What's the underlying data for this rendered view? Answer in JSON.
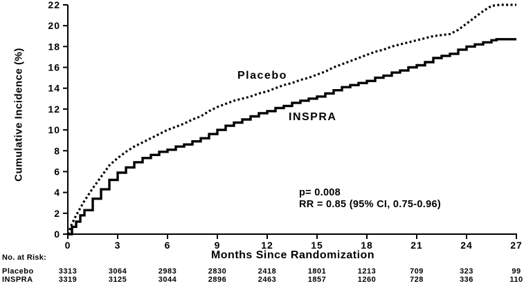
{
  "chart_data": {
    "type": "line",
    "xlabel": "Months Since Randomization",
    "ylabel": "Cumulative Incidence (%)",
    "xlim": [
      0,
      27
    ],
    "ylim": [
      0,
      22
    ],
    "x_ticks": [
      0,
      3,
      6,
      9,
      12,
      15,
      18,
      21,
      24,
      27
    ],
    "y_ticks": [
      0,
      2,
      4,
      6,
      8,
      10,
      12,
      14,
      16,
      18,
      20,
      22
    ],
    "grid": false,
    "legend_position": "labels-on-curves",
    "annotations": [
      "p= 0.008",
      "RR = 0.85 (95% CI, 0.75-0.96)"
    ],
    "series": [
      {
        "name": "Placebo",
        "line_style": "dotted",
        "color": "#000000",
        "points": [
          [
            0,
            0
          ],
          [
            0.25,
            1.0
          ],
          [
            0.5,
            1.8
          ],
          [
            0.75,
            2.5
          ],
          [
            1,
            3.2
          ],
          [
            1.5,
            4.4
          ],
          [
            2,
            5.5
          ],
          [
            2.5,
            6.6
          ],
          [
            3,
            7.3
          ],
          [
            3.5,
            7.9
          ],
          [
            4,
            8.4
          ],
          [
            4.5,
            8.8
          ],
          [
            5,
            9.2
          ],
          [
            5.5,
            9.6
          ],
          [
            6,
            10.0
          ],
          [
            6.5,
            10.3
          ],
          [
            7,
            10.6
          ],
          [
            7.5,
            11.0
          ],
          [
            8,
            11.3
          ],
          [
            8.5,
            11.8
          ],
          [
            9,
            12.2
          ],
          [
            9.5,
            12.5
          ],
          [
            10,
            12.8
          ],
          [
            10.5,
            13.0
          ],
          [
            11,
            13.2
          ],
          [
            11.5,
            13.5
          ],
          [
            12,
            13.7
          ],
          [
            12.5,
            14.0
          ],
          [
            13,
            14.3
          ],
          [
            13.5,
            14.5
          ],
          [
            14,
            14.8
          ],
          [
            14.5,
            15.0
          ],
          [
            15,
            15.3
          ],
          [
            15.5,
            15.6
          ],
          [
            16,
            16.0
          ],
          [
            16.5,
            16.3
          ],
          [
            17,
            16.6
          ],
          [
            17.5,
            16.9
          ],
          [
            18,
            17.2
          ],
          [
            18.5,
            17.5
          ],
          [
            19,
            17.7
          ],
          [
            19.5,
            18.0
          ],
          [
            20,
            18.2
          ],
          [
            20.5,
            18.4
          ],
          [
            21,
            18.6
          ],
          [
            21.5,
            18.8
          ],
          [
            22,
            19.0
          ],
          [
            22.5,
            19.1
          ],
          [
            23,
            19.2
          ],
          [
            23.5,
            19.6
          ],
          [
            24,
            20.2
          ],
          [
            24.5,
            20.8
          ],
          [
            25,
            21.4
          ],
          [
            25.5,
            21.9
          ],
          [
            26,
            22.0
          ],
          [
            27,
            22.0
          ]
        ]
      },
      {
        "name": "INSPRA",
        "line_style": "solid",
        "color": "#000000",
        "points": [
          [
            0,
            0
          ],
          [
            0.25,
            0.7
          ],
          [
            0.5,
            1.2
          ],
          [
            0.75,
            1.8
          ],
          [
            1,
            2.3
          ],
          [
            1.5,
            3.4
          ],
          [
            2,
            4.3
          ],
          [
            2.5,
            5.2
          ],
          [
            3,
            5.9
          ],
          [
            3.5,
            6.4
          ],
          [
            4,
            6.9
          ],
          [
            4.5,
            7.3
          ],
          [
            5,
            7.6
          ],
          [
            5.5,
            7.9
          ],
          [
            6,
            8.1
          ],
          [
            6.5,
            8.4
          ],
          [
            7,
            8.6
          ],
          [
            7.5,
            8.9
          ],
          [
            8,
            9.2
          ],
          [
            8.5,
            9.6
          ],
          [
            9,
            10.0
          ],
          [
            9.5,
            10.4
          ],
          [
            10,
            10.7
          ],
          [
            10.5,
            11.0
          ],
          [
            11,
            11.3
          ],
          [
            11.5,
            11.6
          ],
          [
            12,
            11.8
          ],
          [
            12.5,
            12.1
          ],
          [
            13,
            12.3
          ],
          [
            13.5,
            12.6
          ],
          [
            14,
            12.8
          ],
          [
            14.5,
            13.0
          ],
          [
            15,
            13.2
          ],
          [
            15.5,
            13.5
          ],
          [
            16,
            13.8
          ],
          [
            16.5,
            14.1
          ],
          [
            17,
            14.3
          ],
          [
            17.5,
            14.5
          ],
          [
            18,
            14.7
          ],
          [
            18.5,
            15.0
          ],
          [
            19,
            15.2
          ],
          [
            19.5,
            15.5
          ],
          [
            20,
            15.7
          ],
          [
            20.5,
            16.0
          ],
          [
            21,
            16.2
          ],
          [
            21.5,
            16.5
          ],
          [
            22,
            16.9
          ],
          [
            22.5,
            17.1
          ],
          [
            23,
            17.3
          ],
          [
            23.5,
            17.7
          ],
          [
            24,
            18.0
          ],
          [
            24.5,
            18.2
          ],
          [
            25,
            18.4
          ],
          [
            25.5,
            18.6
          ],
          [
            25.8,
            18.7
          ],
          [
            27,
            18.7
          ]
        ]
      }
    ]
  },
  "at_risk": {
    "label": "No. at Risk:",
    "rows": [
      {
        "name": "Placebo",
        "values": [
          3313,
          3064,
          2983,
          2830,
          2418,
          1801,
          1213,
          709,
          323,
          99
        ]
      },
      {
        "name": "INSPRA",
        "values": [
          3319,
          3125,
          3044,
          2896,
          2463,
          1857,
          1260,
          728,
          336,
          110
        ]
      }
    ]
  }
}
